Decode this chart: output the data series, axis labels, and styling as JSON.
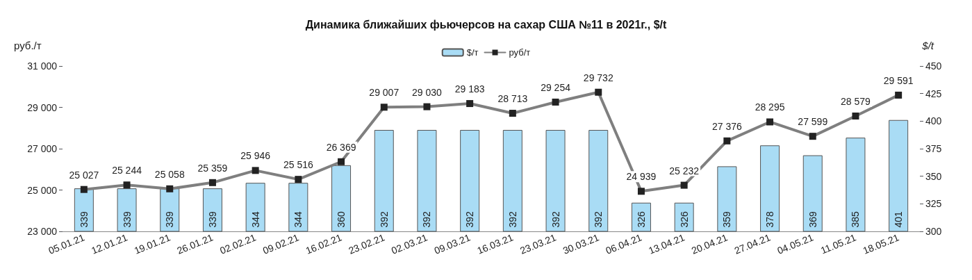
{
  "chart_data": {
    "type": "bar",
    "title": "Динамика ближайших фьючерсов на сахар США №11 в 2021г., $/t",
    "ylabel": "руб./т",
    "y2label": "$/t",
    "categories": [
      "05.01.21",
      "12.01.21",
      "19.01.21",
      "26.01.21",
      "02.02.21",
      "09.02.21",
      "16.02.21",
      "23.02.21",
      "02.03.21",
      "09.03.21",
      "16.03.21",
      "23.03.21",
      "30.03.21",
      "06.04.21",
      "13.04.21",
      "20.04.21",
      "27.04.21",
      "04.05.21",
      "11.05.21",
      "18.05.21"
    ],
    "series": [
      {
        "name": "$/т",
        "axis": "y2",
        "color": "#a9dcf5",
        "values": [
          339,
          339,
          339,
          339,
          344,
          344,
          360,
          392,
          392,
          392,
          392,
          392,
          392,
          326,
          326,
          359,
          378,
          369,
          385,
          401
        ],
        "value_labels": [
          "339",
          "339",
          "339",
          "339",
          "344",
          "344",
          "360",
          "392",
          "392",
          "392",
          "392",
          "392",
          "392",
          "326",
          "326",
          "359",
          "378",
          "369",
          "385",
          "401"
        ]
      },
      {
        "name": "руб/т",
        "type": "line",
        "color": "#7f7f7f",
        "marker": "square",
        "values": [
          25027,
          25244,
          25058,
          25359,
          25946,
          25516,
          26369,
          29007,
          29030,
          29183,
          28713,
          29254,
          29732,
          24939,
          25232,
          27376,
          28295,
          27599,
          28579,
          29591
        ],
        "value_labels": [
          "25 027",
          "25 244",
          "25 058",
          "25 359",
          "25 946",
          "25 516",
          "26 369",
          "29 007",
          "29 030",
          "29 183",
          "28 713",
          "29 254",
          "29 732",
          "24 939",
          "25 232",
          "27 376",
          "28 295",
          "27 599",
          "28 579",
          "29 591"
        ]
      }
    ],
    "ylim": [
      23000,
      31000
    ],
    "yticks": [
      {
        "value": 23000,
        "label": "23 000"
      },
      {
        "value": 25000,
        "label": "25 000"
      },
      {
        "value": 27000,
        "label": "27 000"
      },
      {
        "value": 29000,
        "label": "29 000"
      },
      {
        "value": 31000,
        "label": "31 000"
      }
    ],
    "y2lim": [
      300,
      450
    ],
    "y2ticks": [
      300,
      325,
      350,
      375,
      400,
      425,
      450
    ],
    "legend": "top"
  }
}
